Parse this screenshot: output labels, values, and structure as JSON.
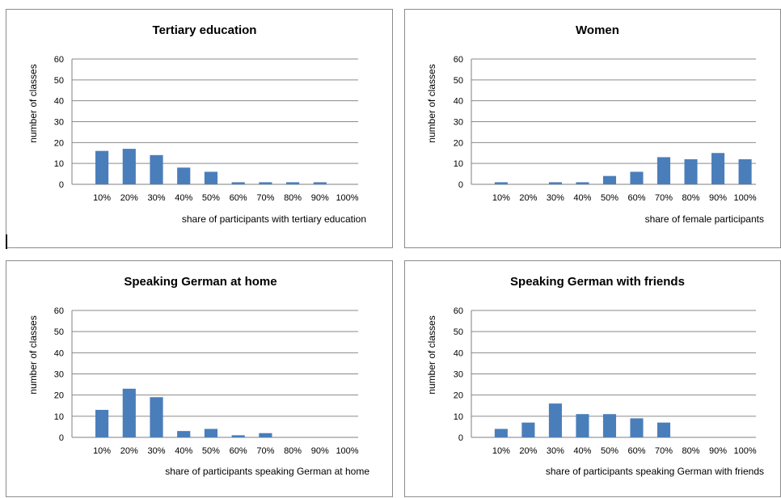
{
  "charts": [
    {
      "type": "bar",
      "title": "Tertiary education",
      "ylabel": "number of classes",
      "xlabel": "share of participants with tertiary education",
      "categories": [
        "10%",
        "20%",
        "30%",
        "40%",
        "50%",
        "60%",
        "70%",
        "80%",
        "90%",
        "100%"
      ],
      "values": [
        16,
        17,
        14,
        8,
        6,
        1,
        1,
        1,
        1,
        0
      ],
      "ylim": [
        0,
        60
      ],
      "yticks": [
        0,
        10,
        20,
        30,
        40,
        50,
        60
      ],
      "color": "#4a7ebb",
      "grid": true
    },
    {
      "type": "bar",
      "title": "Women",
      "ylabel": "number of classes",
      "xlabel": "share of female participants",
      "categories": [
        "10%",
        "20%",
        "30%",
        "40%",
        "50%",
        "60%",
        "70%",
        "80%",
        "90%",
        "100%"
      ],
      "values": [
        1,
        0,
        1,
        1,
        4,
        6,
        13,
        12,
        15,
        12
      ],
      "ylim": [
        0,
        60
      ],
      "yticks": [
        0,
        10,
        20,
        30,
        40,
        50,
        60
      ],
      "color": "#4a7ebb",
      "grid": true
    },
    {
      "type": "bar",
      "title": "Speaking German at home",
      "ylabel": "number of classes",
      "xlabel": "share of participants speaking German at home",
      "categories": [
        "10%",
        "20%",
        "30%",
        "40%",
        "50%",
        "60%",
        "70%",
        "80%",
        "90%",
        "100%"
      ],
      "values": [
        13,
        23,
        19,
        3,
        4,
        1,
        2,
        0,
        0,
        0
      ],
      "ylim": [
        0,
        60
      ],
      "yticks": [
        0,
        10,
        20,
        30,
        40,
        50,
        60
      ],
      "color": "#4a7ebb",
      "grid": true
    },
    {
      "type": "bar",
      "title": "Speaking German with friends",
      "ylabel": "number of classes",
      "xlabel": "share of participants speaking German with friends",
      "categories": [
        "10%",
        "20%",
        "30%",
        "40%",
        "50%",
        "60%",
        "70%",
        "80%",
        "90%",
        "100%"
      ],
      "values": [
        4,
        7,
        16,
        11,
        11,
        9,
        7,
        0,
        0,
        0
      ],
      "ylim": [
        0,
        60
      ],
      "yticks": [
        0,
        10,
        20,
        30,
        40,
        50,
        60
      ],
      "color": "#4a7ebb",
      "grid": true
    }
  ]
}
